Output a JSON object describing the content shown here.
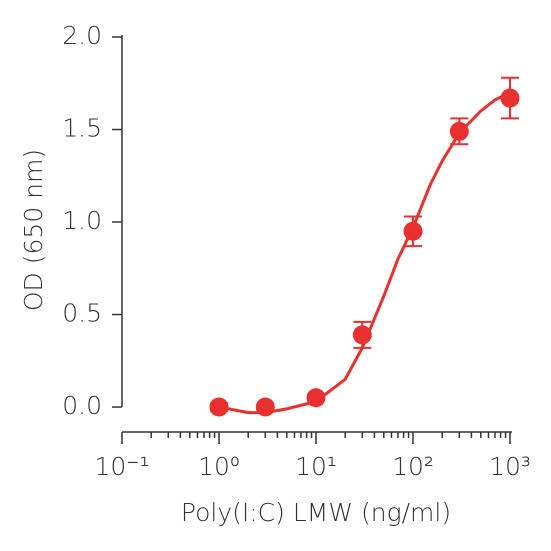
{
  "chart_data": {
    "type": "scatter",
    "x_label": "Poly(I:C) LMW (ng/ml)",
    "y_label": "OD (650 nm)",
    "x": [
      1,
      3,
      10,
      30,
      100,
      300,
      1000
    ],
    "series": [
      {
        "color": "#e8312f",
        "values": [
          0.0,
          0.0,
          0.05,
          0.39,
          0.95,
          1.49,
          1.67
        ],
        "errors": [
          0.02,
          0.01,
          0.01,
          0.07,
          0.08,
          0.07,
          0.11
        ]
      }
    ],
    "fit": {
      "color": "#e8312f",
      "x": [
        1,
        2,
        3,
        5,
        10,
        20,
        30,
        50,
        70,
        100,
        150,
        200,
        300,
        500,
        700,
        1000
      ],
      "values": [
        0.0,
        -0.03,
        -0.03,
        -0.01,
        0.03,
        0.15,
        0.32,
        0.6,
        0.8,
        0.97,
        1.2,
        1.33,
        1.48,
        1.6,
        1.66,
        1.7
      ]
    },
    "xscale": "log",
    "xlim": [
      0.1,
      1000
    ],
    "xticks": [
      {
        "value": 0.1,
        "label": "10⁻¹"
      },
      {
        "value": 1,
        "label": "10⁰"
      },
      {
        "value": 10,
        "label": "10¹"
      },
      {
        "value": 100,
        "label": "10²"
      },
      {
        "value": 1000,
        "label": "10³"
      }
    ],
    "ylim": [
      -0.135,
      2.0
    ],
    "yticks": [
      {
        "value": 0,
        "label": "0.0"
      },
      0.5,
      {
        "value": 1,
        "label": "1.0"
      },
      1.5,
      {
        "value": 2,
        "label": "2.0"
      }
    ]
  }
}
